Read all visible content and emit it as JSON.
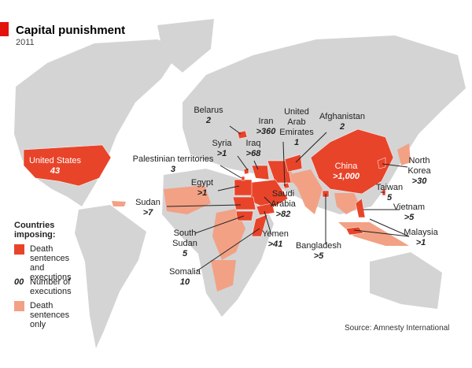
{
  "header": {
    "title": "Capital punishment",
    "subtitle": "2011"
  },
  "colors": {
    "executions": "#e8442a",
    "sentences_only": "#f2a185",
    "land": "#d4d4d4",
    "sea": "#ffffff"
  },
  "countries": [
    {
      "name": "United States",
      "count": "43"
    },
    {
      "name": "Belarus",
      "count": "2"
    },
    {
      "name": "Iran",
      "count": ">360"
    },
    {
      "name": "United Arab Emirates",
      "count": "1"
    },
    {
      "name": "Afghanistan",
      "count": "2"
    },
    {
      "name": "Syria",
      "count": ">1"
    },
    {
      "name": "Iraq",
      "count": ">68"
    },
    {
      "name": "Palestinian territories",
      "count": "3"
    },
    {
      "name": "China",
      "count": ">1,000"
    },
    {
      "name": "North Korea",
      "count": ">30"
    },
    {
      "name": "Taiwan",
      "count": "5"
    },
    {
      "name": "Egypt",
      "count": ">1"
    },
    {
      "name": "Sudan",
      "count": ">7"
    },
    {
      "name": "Saudi Arabia",
      "count": ">82"
    },
    {
      "name": "Vietnam",
      "count": ">5"
    },
    {
      "name": "Malaysia",
      "count": ">1"
    },
    {
      "name": "South Sudan",
      "count": "5"
    },
    {
      "name": "Yemen",
      "count": ">41"
    },
    {
      "name": "Bangladesh",
      "count": ">5"
    },
    {
      "name": "Somalia",
      "count": "10"
    }
  ],
  "legend": {
    "heading": "Countries imposing:",
    "items": [
      {
        "swatch": "executions",
        "label": "Death sentences and executions"
      },
      {
        "sample": "00",
        "label": "Number of executions"
      },
      {
        "swatch": "sentences_only",
        "label": "Death sentences only"
      }
    ]
  },
  "source": "Source: Amnesty International"
}
